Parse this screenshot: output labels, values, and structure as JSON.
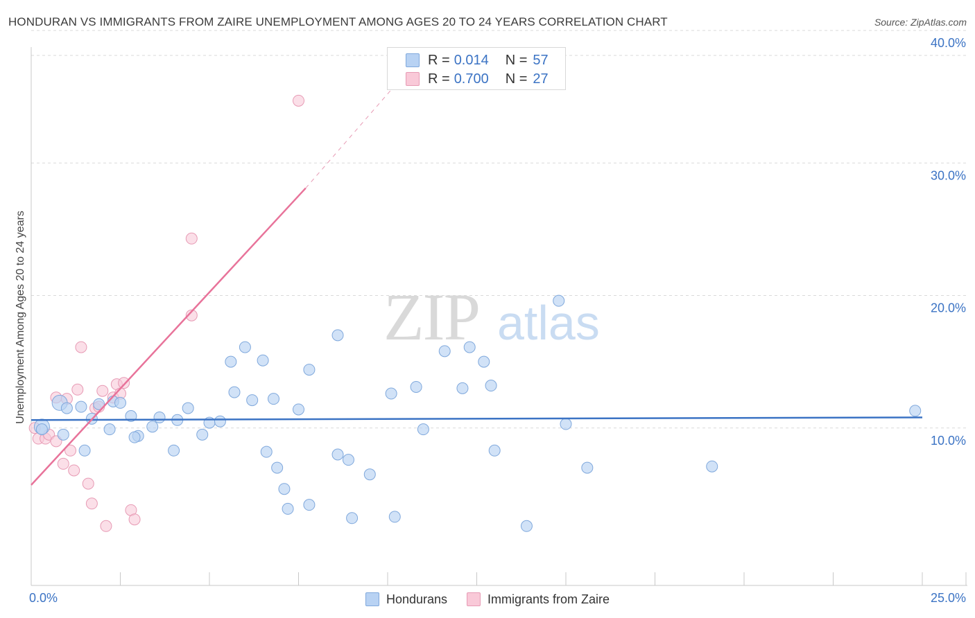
{
  "title": "HONDURAN VS IMMIGRANTS FROM ZAIRE UNEMPLOYMENT AMONG AGES 20 TO 24 YEARS CORRELATION CHART",
  "source": "Source: ZipAtlas.com",
  "watermark": {
    "zip": "ZIP",
    "atlas": "atlas"
  },
  "legend": {
    "rows": [
      {
        "label": "R =",
        "r": "0.014",
        "n_label": "N =",
        "n": "57"
      },
      {
        "label": "R =",
        "r": "0.700",
        "n_label": "N =",
        "n": "27"
      }
    ]
  },
  "bottom_legend": {
    "series1": "Hondurans",
    "series2": "Immigrants from Zaire"
  },
  "colors": {
    "blue_fill": "#b8d2f3",
    "blue_stroke": "#7fa8dc",
    "blue_line": "#3b73c4",
    "pink_fill": "#f9c9d8",
    "pink_stroke": "#e79ab4",
    "pink_line": "#e8739a",
    "grid": "#d9d9d9",
    "tick_text": "#3b73c4"
  },
  "chart_data": {
    "type": "scatter",
    "title": "HONDURAN VS IMMIGRANTS FROM ZAIRE UNEMPLOYMENT AMONG AGES 20 TO 24 YEARS CORRELATION CHART",
    "xlabel": "",
    "ylabel": "Unemployment Among Ages 20 to 24 years",
    "xlim": [
      0,
      25
    ],
    "ylim": [
      0,
      40
    ],
    "x_tick_labels": {
      "min": "0.0%",
      "max": "25.0%"
    },
    "y_ticks": [
      {
        "value": 10,
        "label": "10.0%"
      },
      {
        "value": 20,
        "label": "20.0%"
      },
      {
        "value": 30,
        "label": "30.0%"
      },
      {
        "value": 40,
        "label": "40.0%"
      }
    ],
    "grid": true,
    "series": [
      {
        "name": "Hondurans",
        "R": 0.014,
        "N": 57,
        "trend": {
          "x0": 0,
          "y0": 10.6,
          "x1": 25,
          "y1": 10.8
        },
        "points": [
          [
            0.3,
            10.1
          ],
          [
            0.8,
            11.9
          ],
          [
            1.4,
            11.6
          ],
          [
            1.7,
            10.7
          ],
          [
            1.0,
            11.5
          ],
          [
            2.3,
            12.0
          ],
          [
            2.2,
            9.9
          ],
          [
            2.5,
            11.9
          ],
          [
            2.8,
            10.9
          ],
          [
            3.0,
            9.4
          ],
          [
            3.4,
            10.1
          ],
          [
            3.6,
            10.8
          ],
          [
            4.1,
            10.6
          ],
          [
            4.4,
            11.5
          ],
          [
            4.8,
            9.5
          ],
          [
            5.0,
            10.4
          ],
          [
            5.3,
            10.5
          ],
          [
            5.6,
            15.0
          ],
          [
            5.7,
            12.7
          ],
          [
            6.0,
            16.1
          ],
          [
            6.2,
            12.1
          ],
          [
            6.5,
            15.1
          ],
          [
            6.8,
            12.2
          ],
          [
            6.6,
            8.2
          ],
          [
            6.9,
            7.0
          ],
          [
            7.1,
            5.4
          ],
          [
            7.5,
            11.4
          ],
          [
            7.8,
            14.4
          ],
          [
            8.6,
            17.0
          ],
          [
            8.6,
            8.0
          ],
          [
            8.9,
            7.6
          ],
          [
            9.0,
            3.2
          ],
          [
            9.5,
            6.5
          ],
          [
            10.1,
            12.6
          ],
          [
            10.2,
            3.3
          ],
          [
            10.8,
            13.1
          ],
          [
            11.0,
            9.9
          ],
          [
            11.6,
            15.8
          ],
          [
            12.1,
            13.0
          ],
          [
            12.3,
            16.1
          ],
          [
            12.7,
            15.0
          ],
          [
            12.9,
            13.2
          ],
          [
            13.0,
            8.3
          ],
          [
            13.9,
            2.6
          ],
          [
            14.8,
            19.6
          ],
          [
            15.0,
            10.3
          ],
          [
            15.6,
            7.0
          ],
          [
            19.1,
            7.1
          ],
          [
            24.8,
            11.3
          ],
          [
            1.5,
            8.3
          ],
          [
            7.2,
            3.9
          ],
          [
            7.8,
            4.2
          ],
          [
            0.9,
            9.5
          ],
          [
            4.0,
            8.3
          ],
          [
            0.3,
            9.9
          ],
          [
            1.9,
            11.8
          ],
          [
            2.9,
            9.3
          ]
        ]
      },
      {
        "name": "Immigrants from Zaire",
        "R": 0.7,
        "N": 27,
        "trend": {
          "x0": 0,
          "y0": 5.7,
          "x1": 7.7,
          "y1": 28.1,
          "dash_to": {
            "x": 10.9,
            "y": 38.0
          }
        },
        "points": [
          [
            0.1,
            10.0
          ],
          [
            0.2,
            9.2
          ],
          [
            0.4,
            9.2
          ],
          [
            0.5,
            9.5
          ],
          [
            0.7,
            9.0
          ],
          [
            0.7,
            12.3
          ],
          [
            1.0,
            12.2
          ],
          [
            1.1,
            8.3
          ],
          [
            0.9,
            7.3
          ],
          [
            1.2,
            6.8
          ],
          [
            1.3,
            12.9
          ],
          [
            1.4,
            16.1
          ],
          [
            1.6,
            5.8
          ],
          [
            1.7,
            4.3
          ],
          [
            1.8,
            11.5
          ],
          [
            2.0,
            12.8
          ],
          [
            2.1,
            2.6
          ],
          [
            2.3,
            12.3
          ],
          [
            2.4,
            13.3
          ],
          [
            2.6,
            13.4
          ],
          [
            2.8,
            3.8
          ],
          [
            2.9,
            3.1
          ],
          [
            4.5,
            18.5
          ],
          [
            4.5,
            24.3
          ],
          [
            7.5,
            34.7
          ],
          [
            1.9,
            11.6
          ],
          [
            2.5,
            12.6
          ]
        ]
      }
    ]
  }
}
